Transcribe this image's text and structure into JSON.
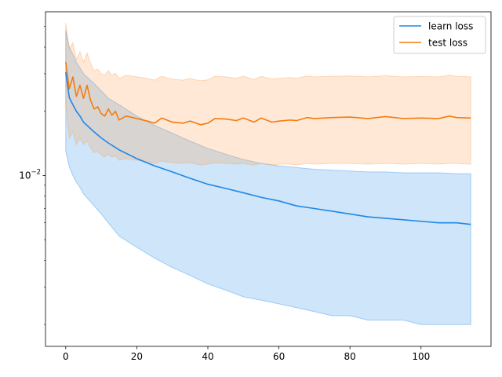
{
  "chart_data": {
    "type": "line",
    "title": "",
    "xlabel": "",
    "ylabel": "",
    "x_scale": "linear",
    "y_scale": "log",
    "xlim": [
      -5.7,
      119.7
    ],
    "ylim": [
      0.00158,
      0.0586
    ],
    "x_ticks": [
      0,
      20,
      40,
      60,
      80,
      100
    ],
    "x_tick_labels": [
      "0",
      "20",
      "40",
      "60",
      "80",
      "100"
    ],
    "y_major_ticks": [
      0.01
    ],
    "y_minor_ticks": [
      0.002,
      0.003,
      0.004,
      0.005,
      0.006,
      0.007,
      0.008,
      0.009,
      0.02,
      0.03,
      0.04,
      0.05
    ],
    "grid": false,
    "legend_position": "upper-right",
    "series": [
      {
        "name": "learn loss",
        "color": "#1f87e8",
        "band_color": "#1f87e8",
        "x": [
          0,
          1,
          2,
          3,
          4,
          5,
          8,
          10,
          12,
          15,
          20,
          25,
          30,
          35,
          40,
          45,
          50,
          55,
          60,
          65,
          70,
          75,
          80,
          85,
          90,
          95,
          100,
          105,
          110,
          114
        ],
        "values": [
          0.0305,
          0.0232,
          0.0215,
          0.02,
          0.019,
          0.0178,
          0.016,
          0.015,
          0.0142,
          0.0132,
          0.012,
          0.0111,
          0.0104,
          0.0097,
          0.0091,
          0.0087,
          0.0083,
          0.0079,
          0.0076,
          0.0072,
          0.007,
          0.0068,
          0.0066,
          0.0064,
          0.0063,
          0.0062,
          0.0061,
          0.006,
          0.006,
          0.0059
        ],
        "lower": [
          0.013,
          0.011,
          0.01,
          0.0093,
          0.0088,
          0.0082,
          0.0072,
          0.0066,
          0.006,
          0.0052,
          0.0046,
          0.0041,
          0.0037,
          0.0034,
          0.0031,
          0.0029,
          0.0027,
          0.0026,
          0.0025,
          0.0024,
          0.0023,
          0.0022,
          0.0022,
          0.0021,
          0.0021,
          0.0021,
          0.002,
          0.002,
          0.002,
          0.002
        ],
        "upper": [
          0.048,
          0.04,
          0.037,
          0.034,
          0.032,
          0.03,
          0.027,
          0.025,
          0.023,
          0.0215,
          0.019,
          0.0172,
          0.0158,
          0.0145,
          0.0134,
          0.0126,
          0.0119,
          0.0114,
          0.0111,
          0.0109,
          0.0107,
          0.0106,
          0.0105,
          0.0104,
          0.0104,
          0.0103,
          0.0103,
          0.0103,
          0.0102,
          0.0102
        ]
      },
      {
        "name": "test loss",
        "color": "#f57c0f",
        "band_color": "#fd9b45",
        "x": [
          0,
          1,
          2,
          3,
          4,
          5,
          6,
          7,
          8,
          9,
          10,
          11,
          12,
          13,
          14,
          15,
          17,
          20,
          23,
          25,
          27,
          30,
          33,
          35,
          38,
          40,
          42,
          45,
          48,
          50,
          53,
          55,
          58,
          60,
          63,
          65,
          68,
          70,
          75,
          80,
          85,
          90,
          95,
          100,
          105,
          108,
          110,
          114
        ],
        "values": [
          0.034,
          0.0255,
          0.029,
          0.0235,
          0.0265,
          0.023,
          0.0265,
          0.0225,
          0.0205,
          0.021,
          0.0195,
          0.019,
          0.0205,
          0.0192,
          0.02,
          0.0182,
          0.019,
          0.0185,
          0.018,
          0.0176,
          0.0186,
          0.0178,
          0.0176,
          0.018,
          0.0173,
          0.0176,
          0.0185,
          0.0184,
          0.0181,
          0.0186,
          0.0178,
          0.0186,
          0.0178,
          0.018,
          0.0182,
          0.0181,
          0.0187,
          0.0185,
          0.0187,
          0.0188,
          0.0185,
          0.0189,
          0.0185,
          0.0186,
          0.0185,
          0.019,
          0.0187,
          0.0186
        ],
        "lower": [
          0.022,
          0.015,
          0.016,
          0.014,
          0.015,
          0.014,
          0.0145,
          0.0135,
          0.0128,
          0.013,
          0.0125,
          0.0122,
          0.0126,
          0.0122,
          0.0124,
          0.0118,
          0.012,
          0.0118,
          0.0116,
          0.0114,
          0.0117,
          0.0115,
          0.0114,
          0.0115,
          0.0112,
          0.0113,
          0.0115,
          0.0114,
          0.0113,
          0.0114,
          0.0112,
          0.0114,
          0.0112,
          0.0113,
          0.0113,
          0.0112,
          0.0114,
          0.0113,
          0.0114,
          0.0114,
          0.0113,
          0.0114,
          0.0113,
          0.0114,
          0.0113,
          0.0114,
          0.0114,
          0.0113
        ],
        "upper": [
          0.052,
          0.039,
          0.042,
          0.035,
          0.038,
          0.034,
          0.0375,
          0.0335,
          0.031,
          0.0315,
          0.03,
          0.0295,
          0.031,
          0.0296,
          0.0302,
          0.0285,
          0.0295,
          0.029,
          0.0285,
          0.028,
          0.0292,
          0.0283,
          0.028,
          0.0285,
          0.0278,
          0.0281,
          0.0292,
          0.029,
          0.0286,
          0.0292,
          0.0282,
          0.0292,
          0.0283,
          0.0285,
          0.0288,
          0.0286,
          0.0293,
          0.029,
          0.0292,
          0.0293,
          0.029,
          0.0294,
          0.029,
          0.0291,
          0.029,
          0.0295,
          0.0292,
          0.029
        ]
      }
    ]
  }
}
